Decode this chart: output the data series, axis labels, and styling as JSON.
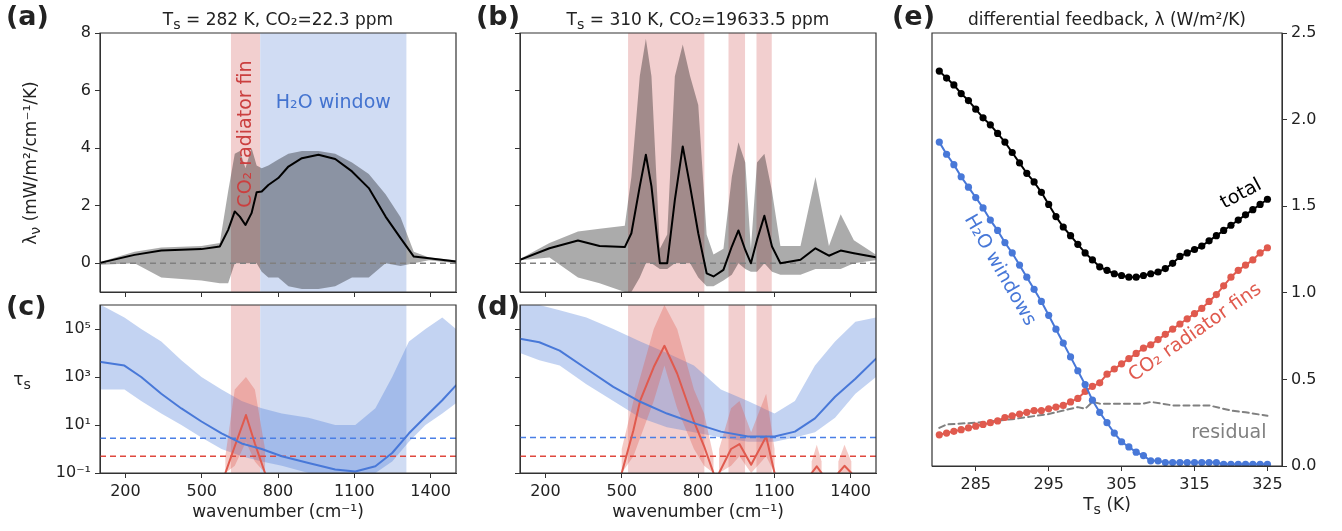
{
  "chart_data": [
    {
      "type": "line",
      "title": "T$_{s}$ = 282 K, CO₂=22.3 ppm",
      "ylabel": "λ$_{ν}$ (mW/m²/cm⁻¹/K)",
      "annotations": [
        "(a)"
      ],
      "xlim": [
        100,
        1500
      ],
      "xticks": [
        200,
        500,
        800,
        1100,
        1400
      ],
      "ylim": [
        -1,
        8
      ],
      "yticks": [
        0,
        2,
        4,
        6,
        8
      ],
      "tick_labels": "y",
      "legend": false,
      "bands": [
        {
          "axis": "x",
          "from": 615,
          "to": 730,
          "label": "CO₂ radiator fin",
          "color": "#f2cfcf"
        },
        {
          "axis": "x",
          "from": 730,
          "to": 1305,
          "label": "H₂O window",
          "color": "#d0dcf3"
        }
      ],
      "ref_lines": [
        {
          "axis": "y",
          "value": 0,
          "color": "#808080",
          "line_style": "dashed"
        }
      ],
      "series": [
        {
          "color": "#000000",
          "x": [
            104,
            236,
            341,
            499,
            571,
            604,
            630,
            650,
            672,
            696,
            716,
            736,
            762,
            801,
            841,
            894,
            959,
            1025,
            1091,
            1157,
            1223,
            1282,
            1334,
            1394,
            1500
          ],
          "values": [
            0.02,
            0.29,
            0.44,
            0.49,
            0.58,
            1.16,
            1.8,
            1.62,
            1.33,
            1.74,
            2.47,
            2.49,
            2.72,
            2.96,
            3.36,
            3.65,
            3.77,
            3.62,
            3.19,
            2.61,
            1.62,
            0.87,
            0.23,
            0.17,
            0.06
          ],
          "upper": [
            0.05,
            0.4,
            0.55,
            0.6,
            0.7,
            2.5,
            3.8,
            3.9,
            3.3,
            4.0,
            3.4,
            3.3,
            3.4,
            3.6,
            3.8,
            3.9,
            3.9,
            3.8,
            3.5,
            3.1,
            2.4,
            1.6,
            0.4,
            0.2,
            0.1
          ],
          "lower": [
            -0.05,
            0,
            -0.5,
            -0.6,
            -0.7,
            -0.7,
            0,
            0,
            0,
            0,
            0,
            -0.3,
            -0.5,
            -0.5,
            -0.8,
            -0.9,
            -0.9,
            -0.8,
            -0.5,
            -0.5,
            0,
            -0.1,
            0,
            0.1,
            0
          ]
        }
      ]
    },
    {
      "type": "line",
      "title": "T$_{s}$ = 310 K, CO₂=19633.5 ppm",
      "annotations": [
        "(b)"
      ],
      "xlim": [
        100,
        1500
      ],
      "xticks": [
        200,
        500,
        800,
        1100,
        1400
      ],
      "ylim": [
        -1,
        8
      ],
      "yticks": [
        0,
        2,
        4,
        6,
        8
      ],
      "tick_labels": false,
      "legend": false,
      "bands": [
        {
          "axis": "x",
          "from": 525,
          "to": 825,
          "color": "#f2cfcf"
        },
        {
          "axis": "x",
          "from": 920,
          "to": 985,
          "color": "#f2cfcf"
        },
        {
          "axis": "x",
          "from": 1030,
          "to": 1090,
          "color": "#f2cfcf"
        }
      ],
      "ref_lines": [
        {
          "axis": "y",
          "value": 0,
          "color": "#808080",
          "line_style": "dashed"
        }
      ],
      "series": [
        {
          "color": "#000000",
          "x": [
            100,
            216,
            328,
            413,
            512,
            538,
            571,
            595,
            617,
            650,
            679,
            709,
            740,
            769,
            801,
            834,
            861,
            900,
            933,
            959,
            986,
            1008,
            1032,
            1061,
            1091,
            1124,
            1203,
            1262,
            1315,
            1361,
            1413,
            1499
          ],
          "values": [
            0.12,
            0.52,
            0.79,
            0.6,
            0.56,
            1.04,
            2.67,
            3.77,
            2.67,
            0,
            0,
            2.2,
            4.06,
            2.67,
            1.04,
            -0.35,
            -0.46,
            -0.23,
            0.58,
            1.14,
            0.46,
            0,
            0.81,
            1.65,
            0.58,
            0,
            0.12,
            0.52,
            0.26,
            0.44,
            0.35,
            0.21
          ],
          "upper": [
            0.15,
            0.7,
            1.1,
            1.2,
            1.3,
            3,
            6.5,
            7.8,
            6.5,
            0.5,
            1,
            6.5,
            7.6,
            6.5,
            5.5,
            1,
            0.3,
            0.5,
            3,
            4.2,
            3.5,
            0.5,
            3.5,
            3.8,
            2.5,
            0.6,
            0.6,
            3,
            0.6,
            1.7,
            0.8,
            0.3
          ],
          "lower": [
            0.1,
            0.2,
            -0.5,
            -0.7,
            -1,
            -1,
            -0.5,
            0,
            0,
            -0.2,
            -0.2,
            0,
            0,
            0,
            -0.5,
            -0.8,
            -0.8,
            -0.6,
            -0.4,
            0,
            -0.2,
            -0.3,
            -0.3,
            0,
            -0.3,
            -0.4,
            -0.4,
            -0.2,
            -0.2,
            -0.2,
            0,
            0.1
          ]
        }
      ]
    },
    {
      "type": "line",
      "xlabel": "wavenumber (cm⁻¹)",
      "ylabel": "τ$_{s}$",
      "annotations": [
        "(c)"
      ],
      "log": "y",
      "xlim": [
        100,
        1500
      ],
      "xticks": [
        200,
        500,
        800,
        1100,
        1400
      ],
      "ylim": [
        0.1,
        1000000
      ],
      "yticks": [
        {
          "value": 0.1,
          "label": "10⁻¹"
        },
        {
          "value": 10,
          "label": "10¹"
        },
        {
          "value": 1000,
          "label": "10³"
        },
        {
          "value": 100000,
          "label": "10⁵"
        }
      ],
      "legend": false,
      "bands": [
        {
          "axis": "x",
          "from": 615,
          "to": 730,
          "color": "#f2cfcf"
        },
        {
          "axis": "x",
          "from": 730,
          "to": 1305,
          "color": "#d0dcf3"
        }
      ],
      "ref_lines": [
        {
          "axis": "y",
          "value": 2.8,
          "color": "#4a7fe6",
          "line_style": "dashed"
        },
        {
          "axis": "y",
          "value": 0.5,
          "color": "#e0483e",
          "line_style": "dashed"
        }
      ],
      "series": [
        {
          "color": "#4878d8",
          "x": [
            104,
            196,
            262,
            341,
            420,
            499,
            578,
            657,
            736,
            815,
            920,
            1025,
            1104,
            1183,
            1249,
            1315,
            1380,
            1446,
            1500
          ],
          "values": [
            4200,
            3000,
            1000,
            200,
            49,
            14,
            4.5,
            1.7,
            1,
            0.5,
            0.26,
            0.14,
            0.115,
            0.19,
            0.68,
            4.5,
            22,
            107,
            450
          ],
          "upper": [
            1000000,
            300000,
            100000,
            30000,
            5000,
            1000,
            300,
            100,
            50,
            30,
            20,
            10,
            10,
            50,
            1000,
            30000,
            100000,
            300000,
            100000
          ],
          "lower": [
            300,
            300,
            100,
            30,
            10,
            3,
            1,
            0.5,
            0.3,
            0.2,
            0.1,
            0.1,
            0.1,
            0.1,
            0.3,
            2,
            10,
            30,
            80
          ]
        },
        {
          "color": "#e05a4e",
          "x": [
            593,
            630,
            674,
            709,
            749
          ],
          "values": [
            0.1,
            1.3,
            26,
            1.7,
            0.1
          ],
          "upper": [
            0.5,
            300,
            1000,
            300,
            1
          ],
          "lower": [
            0.1,
            0.2,
            2,
            0.3,
            0.1
          ]
        }
      ]
    },
    {
      "type": "line",
      "xlabel": "wavenumber (cm⁻¹)",
      "annotations": [
        "(d)"
      ],
      "log": "y",
      "xlim": [
        100,
        1500
      ],
      "xticks": [
        200,
        500,
        800,
        1100,
        1400
      ],
      "ylim": [
        0.1,
        1000000
      ],
      "yticks": [
        {
          "value": 0.1,
          "label": null
        },
        {
          "value": 10,
          "label": null
        },
        {
          "value": 1000,
          "label": null
        },
        {
          "value": 100000,
          "label": null
        }
      ],
      "tick_labels": "x",
      "legend": false,
      "bands": [
        {
          "axis": "x",
          "from": 525,
          "to": 825,
          "color": "#f2cfcf"
        },
        {
          "axis": "x",
          "from": 920,
          "to": 985,
          "color": "#f2cfcf"
        },
        {
          "axis": "x",
          "from": 1030,
          "to": 1090,
          "color": "#f2cfcf"
        }
      ],
      "ref_lines": [
        {
          "axis": "y",
          "value": 3,
          "color": "#4a7fe6",
          "line_style": "dashed"
        },
        {
          "axis": "y",
          "value": 0.5,
          "color": "#e0483e",
          "line_style": "dashed"
        }
      ],
      "series": [
        {
          "color": "#4878d8",
          "x": [
            100,
            176,
            256,
            361,
            467,
            573,
            678,
            784,
            890,
            996,
            1101,
            1181,
            1260,
            1339,
            1419,
            1500
          ],
          "values": [
            39000,
            28000,
            12600,
            2200,
            390,
            93,
            30,
            12,
            5.3,
            3.3,
            3.3,
            5.3,
            19,
            150,
            850,
            5800
          ],
          "upper": [
            1000000,
            1000000,
            600000,
            300000,
            100000,
            30000,
            10000,
            3000,
            300,
            100,
            30,
            100,
            3000,
            30000,
            200000,
            300000
          ],
          "lower": [
            10000,
            5000,
            3000,
            500,
            100,
            20,
            8,
            5,
            3,
            2,
            2,
            3,
            5,
            20,
            200,
            1000
          ]
        },
        {
          "color": "#e05a4e",
          "x": [
            500,
            546,
            573,
            626,
            668,
            718,
            784,
            824,
            861,
            872,
            883,
            930,
            963,
            1009,
            1068,
            1101,
            1170,
            1247,
            1267,
            1286,
            1320,
            1352,
            1376,
            1403
          ],
          "values": [
            0.1,
            6,
            107,
            2600,
            20000,
            1400,
            14,
            1.3,
            0.1,
            null,
            0.1,
            1,
            1.6,
            0.22,
            3.3,
            0.1,
            null,
            0.1,
            0.19,
            0.1,
            null,
            0.1,
            0.2,
            0.1
          ],
          "upper": [
            1,
            100,
            1000,
            100000,
            1000000,
            100000,
            300,
            30,
            0.5,
            null,
            1,
            50,
            100,
            5,
            200,
            1,
            null,
            0.3,
            1.5,
            0.3,
            null,
            0.3,
            1.5,
            0.3
          ],
          "lower": [
            0.1,
            0.5,
            3,
            100,
            3000,
            50,
            1,
            0.2,
            0.1,
            null,
            0.1,
            0.2,
            0.5,
            0.1,
            0.5,
            0.1,
            null,
            0.1,
            0.1,
            0.1,
            null,
            0.1,
            0.1,
            0.1
          ]
        }
      ]
    },
    {
      "type": "line",
      "title": "differential feedback, λ (W/m²/K)",
      "xlabel": "T$_{s}$ (K)",
      "annotations": [
        "(e)"
      ],
      "xlim": [
        279,
        327
      ],
      "xticks": [
        285,
        295,
        305,
        315,
        325
      ],
      "ylim": [
        0,
        2.5
      ],
      "yticks": [
        {
          "value": 0,
          "label": "0.0"
        },
        {
          "value": 0.5,
          "label": "0.5"
        },
        {
          "value": 1,
          "label": "1.0"
        },
        {
          "value": 1.5,
          "label": "1.5"
        },
        {
          "value": 2,
          "label": "2.0"
        },
        {
          "value": 2.5,
          "label": "2.5"
        }
      ],
      "legend": false,
      "marker": "circle",
      "x": [
        280,
        281,
        282,
        283,
        284,
        285,
        286,
        287,
        288,
        289,
        290,
        291,
        292,
        293,
        294,
        295,
        296,
        297,
        298,
        299,
        300,
        301,
        302,
        303,
        304,
        305,
        306,
        307,
        308,
        309,
        310,
        311,
        312,
        313,
        314,
        315,
        316,
        317,
        318,
        319,
        320,
        321,
        322,
        323,
        324,
        325
      ],
      "series": [
        {
          "name": "total",
          "color": "#000000",
          "values": [
            2.28,
            2.24,
            2.2,
            2.15,
            2.11,
            2.06,
            2.01,
            1.97,
            1.92,
            1.87,
            1.81,
            1.75,
            1.69,
            1.64,
            1.58,
            1.51,
            1.44,
            1.38,
            1.33,
            1.28,
            1.23,
            1.19,
            1.15,
            1.13,
            1.11,
            1.1,
            1.09,
            1.09,
            1.1,
            1.11,
            1.12,
            1.14,
            1.17,
            1.21,
            1.23,
            1.25,
            1.27,
            1.3,
            1.33,
            1.36,
            1.39,
            1.42,
            1.45,
            1.48,
            1.51,
            1.54
          ]
        },
        {
          "name": "H₂O windows",
          "color": "#4878d8",
          "values": [
            1.87,
            1.8,
            1.74,
            1.67,
            1.61,
            1.55,
            1.49,
            1.42,
            1.36,
            1.29,
            1.23,
            1.16,
            1.09,
            1.02,
            0.95,
            0.87,
            0.79,
            0.71,
            0.63,
            0.55,
            0.47,
            0.38,
            0.31,
            0.25,
            0.19,
            0.14,
            0.11,
            0.08,
            0.06,
            0.03,
            0.03,
            0.02,
            0.02,
            0.02,
            0.02,
            0.02,
            0.02,
            0.02,
            0.02,
            0.01,
            0.01,
            0.01,
            0.01,
            0.01,
            0.01,
            0.01
          ]
        },
        {
          "name": "CO₂ radiator fins",
          "color": "#e05a4e",
          "values": [
            0.18,
            0.19,
            0.2,
            0.21,
            0.22,
            0.23,
            0.24,
            0.25,
            0.26,
            0.28,
            0.29,
            0.3,
            0.31,
            0.32,
            0.32,
            0.33,
            0.34,
            0.35,
            0.37,
            0.39,
            0.43,
            0.46,
            0.48,
            0.53,
            0.56,
            0.59,
            0.62,
            0.65,
            0.68,
            0.7,
            0.73,
            0.76,
            0.79,
            0.82,
            0.85,
            0.88,
            0.91,
            0.95,
            0.99,
            1.04,
            1.09,
            1.13,
            1.16,
            1.19,
            1.23,
            1.26
          ]
        },
        {
          "name": "residual",
          "color": "#808080",
          "marker": "none",
          "line_style": "dashed",
          "x": [
            280,
            281,
            285,
            290,
            295,
            297,
            299,
            300,
            301,
            302,
            305,
            308,
            309,
            312,
            315,
            317,
            320,
            322,
            325
          ],
          "values": [
            0.22,
            0.24,
            0.25,
            0.27,
            0.3,
            0.32,
            0.34,
            0.33,
            0.37,
            0.36,
            0.36,
            0.36,
            0.37,
            0.35,
            0.35,
            0.35,
            0.32,
            0.31,
            0.29
          ]
        }
      ]
    }
  ]
}
